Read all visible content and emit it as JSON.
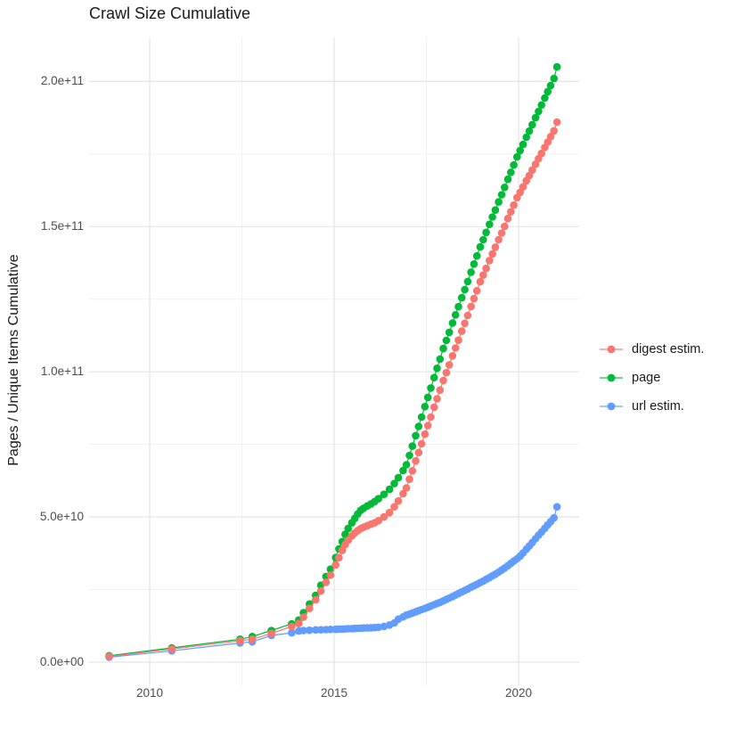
{
  "title": "Crawl Size Cumulative",
  "axes": {
    "y_label": "Pages / Unique Items Cumulative",
    "y_ticks": [
      "2.0e+11",
      "1.5e+11",
      "1.0e+11",
      "5.0e+10",
      "0.0e+00"
    ],
    "x_ticks": [
      "2010",
      "2015",
      "2020"
    ]
  },
  "colors": {
    "digest_estim": "#F8766D",
    "page": "#00BA38",
    "url_estim": "#619CFF",
    "grid_major": "#e4e4e4",
    "grid_minor": "#f1f1f1",
    "tick_text": "#4d4d4d",
    "title_text": "#1a1a1a"
  },
  "chart_data": {
    "type": "scatter",
    "title": "Crawl Size Cumulative",
    "xlabel": "",
    "ylabel": "Pages / Unique Items Cumulative",
    "xlim": [
      2008.3,
      2021.7
    ],
    "ylim": [
      0,
      215000000000
    ],
    "x_ticks": [
      2010,
      2015,
      2020
    ],
    "y_ticks": [
      0,
      50000000000,
      100000000000,
      150000000000,
      200000000000
    ],
    "y_tick_labels_bottom_up": [
      "0.0e+00",
      "5.0e+10",
      "1.0e+11",
      "1.5e+11",
      "2.0e+11"
    ],
    "grid": "major+minor",
    "legend_position": "right",
    "points_style": "dot+line",
    "value_unit": "billions of pages / unique items (1e9)",
    "x_years": [
      2008.9,
      2010.6,
      2012.45,
      2012.78,
      2013.3,
      2013.85,
      2014.04,
      2014.17,
      2014.33,
      2014.5,
      2014.64,
      2014.78,
      2014.9,
      2015.04,
      2015.13,
      2015.22,
      2015.3,
      2015.38,
      2015.48,
      2015.56,
      2015.64,
      2015.72,
      2015.8,
      2015.9,
      2016.0,
      2016.1,
      2016.2,
      2016.35,
      2016.5,
      2016.63,
      2016.74,
      2016.87,
      2016.96,
      2017.04,
      2017.12,
      2017.21,
      2017.29,
      2017.37,
      2017.46,
      2017.54,
      2017.62,
      2017.71,
      2017.79,
      2017.87,
      2017.96,
      2018.04,
      2018.12,
      2018.21,
      2018.29,
      2018.37,
      2018.46,
      2018.54,
      2018.62,
      2018.71,
      2018.79,
      2018.87,
      2018.96,
      2019.04,
      2019.12,
      2019.21,
      2019.29,
      2019.37,
      2019.46,
      2019.54,
      2019.62,
      2019.71,
      2019.79,
      2019.87,
      2019.96,
      2020.04,
      2020.12,
      2020.21,
      2020.29,
      2020.37,
      2020.46,
      2020.54,
      2020.62,
      2020.71,
      2020.79,
      2020.87,
      2020.96,
      2021.04
    ],
    "series": [
      {
        "name": "digest estim.",
        "color": "#F8766D",
        "values_billions": [
          2.0,
          4.5,
          7.4,
          7.9,
          9.9,
          12.3,
          13.3,
          15.5,
          18.5,
          21.5,
          24.5,
          27.5,
          30,
          33.5,
          36,
          38.5,
          40.5,
          42,
          43.5,
          44.5,
          45.3,
          46,
          46.5,
          47,
          47.5,
          48,
          48.7,
          50,
          51.5,
          53.5,
          55.5,
          58,
          60,
          63,
          65.9,
          69.3,
          72.2,
          75.2,
          78.5,
          81.5,
          84.4,
          87.8,
          90.7,
          93.7,
          97,
          99.7,
          102.4,
          105.5,
          108.2,
          110.9,
          114,
          116.7,
          119.4,
          122.5,
          125.2,
          127.9,
          131,
          133.3,
          135.6,
          138.3,
          140.6,
          142.9,
          145.5,
          147.8,
          150.1,
          152.8,
          155.1,
          157.4,
          160,
          161.8,
          163.7,
          165.8,
          167.6,
          169.5,
          171.5,
          173.4,
          175.2,
          177.3,
          179.1,
          181,
          183,
          186
        ]
      },
      {
        "name": "page",
        "color": "#00BA38",
        "values_billions": [
          2.2,
          4.9,
          7.9,
          8.8,
          10.9,
          13.2,
          14.5,
          17,
          20,
          23,
          26.5,
          29.5,
          32,
          36,
          39,
          41.5,
          44,
          46,
          48,
          49.5,
          51,
          52.3,
          53,
          53.8,
          54.5,
          55.3,
          56.3,
          57.8,
          59.5,
          61.5,
          63.5,
          66,
          68,
          71.2,
          74.4,
          78,
          81.2,
          84.4,
          88,
          91.2,
          94.4,
          98,
          101.2,
          104.4,
          108,
          110.8,
          113.6,
          116.8,
          119.6,
          122.4,
          125.5,
          128.3,
          131.1,
          134.3,
          137.1,
          139.9,
          143,
          145.5,
          148,
          150.8,
          153.3,
          155.7,
          158.5,
          161,
          163.5,
          166.3,
          168.7,
          171.2,
          174,
          176.2,
          178.3,
          180.8,
          182.9,
          185.1,
          187.5,
          189.7,
          191.9,
          194.3,
          196.5,
          198.6,
          201,
          205
        ]
      },
      {
        "name": "url estim.",
        "color": "#619CFF",
        "values_billions": [
          1.7,
          3.9,
          6.6,
          7.0,
          9.2,
          10.1,
          10.7,
          10.9,
          11.0,
          11.1,
          11.15,
          11.2,
          11.25,
          11.3,
          11.35,
          11.4,
          11.45,
          11.5,
          11.55,
          11.6,
          11.65,
          11.7,
          11.75,
          11.8,
          11.85,
          11.9,
          12.0,
          12.3,
          12.8,
          13.5,
          14.8,
          15.6,
          16.2,
          16.5,
          16.9,
          17.3,
          17.7,
          18.1,
          18.5,
          18.9,
          19.3,
          19.8,
          20.2,
          20.6,
          21.1,
          21.6,
          22.1,
          22.6,
          23.1,
          23.6,
          24.2,
          24.7,
          25.2,
          25.8,
          26.3,
          26.8,
          27.4,
          27.9,
          28.5,
          29.1,
          29.7,
          30.3,
          31,
          31.7,
          32.4,
          33.2,
          34,
          34.8,
          35.6,
          36.5,
          37.6,
          38.9,
          40.0,
          41.2,
          42.5,
          43.7,
          44.8,
          46.1,
          47.3,
          48.4,
          49.7,
          53.5
        ]
      }
    ]
  }
}
